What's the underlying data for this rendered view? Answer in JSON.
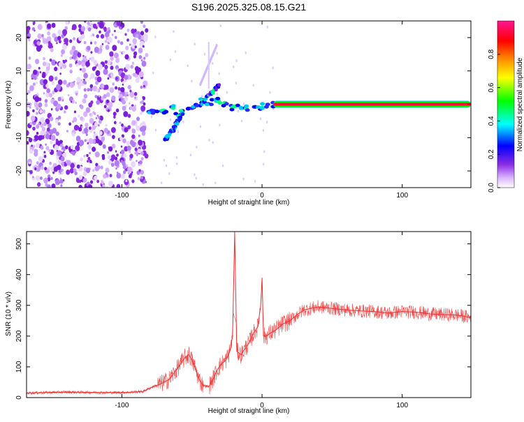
{
  "title": "S196.2025.325.08.15.G21",
  "chart_data": [
    {
      "type": "heatmap",
      "name": "spectrogram",
      "xlabel": "Height of straight line (km)",
      "ylabel": "Frequency (Hz)",
      "xlim": [
        -168,
        149
      ],
      "ylim": [
        -25,
        25
      ],
      "xticks": [
        -100,
        0,
        100
      ],
      "xtick_labels": [
        "-100",
        "0",
        "100"
      ],
      "yticks": [
        -20,
        -10,
        0,
        10,
        20
      ],
      "ytick_labels": [
        "-20",
        "-10",
        "0",
        "10",
        "20"
      ],
      "carrier": {
        "x_from": 8,
        "x_to": 149,
        "freq": 0,
        "amplitude": 1.0
      },
      "colorbar": {
        "label": "Normalized spectral amplitude",
        "range": [
          0,
          1
        ],
        "ticks": [
          0.0,
          0.2,
          0.4,
          0.6,
          0.8
        ],
        "tick_labels": [
          "0.0",
          "0.2",
          "0.4",
          "0.6",
          "0.8"
        ],
        "colors": [
          "#ffffff",
          "#d9b3ff",
          "#8a2be2",
          "#0000ff",
          "#00ffff",
          "#00ff00",
          "#ffff00",
          "#ff8000",
          "#ff0000",
          "#ff1493"
        ]
      }
    },
    {
      "type": "line",
      "name": "snr",
      "xlabel": "Height of straight line (km)",
      "ylabel": "SNR (10 * v/v)",
      "xlim": [
        -168,
        149
      ],
      "ylim": [
        0,
        540
      ],
      "xticks": [
        -100,
        0,
        100
      ],
      "xtick_labels": [
        "-100",
        "0",
        "100"
      ],
      "yticks": [
        0,
        100,
        200,
        300,
        400,
        500
      ],
      "ytick_labels": [
        "0",
        "100",
        "200",
        "300",
        "400",
        "500"
      ],
      "color": "#ee3030",
      "series": [
        {
          "name": "SNR",
          "x": [
            -168,
            -140,
            -110,
            -95,
            -85,
            -78,
            -72,
            -66,
            -62,
            -58,
            -55,
            -52,
            -48,
            -45,
            -42,
            -38,
            -35,
            -32,
            -29,
            -26,
            -23,
            -21,
            -19.5,
            -18,
            -15,
            -12,
            -9,
            -6,
            -3,
            -1,
            0,
            1,
            3,
            6,
            10,
            15,
            20,
            25,
            30,
            40,
            50,
            60,
            70,
            80,
            90,
            100,
            110,
            120,
            130,
            140,
            149
          ],
          "y": [
            15,
            18,
            16,
            17,
            20,
            35,
            45,
            60,
            85,
            110,
            130,
            140,
            100,
            60,
            40,
            35,
            60,
            90,
            110,
            120,
            150,
            200,
            540,
            150,
            140,
            160,
            180,
            210,
            230,
            300,
            390,
            200,
            200,
            210,
            220,
            240,
            250,
            270,
            285,
            295,
            290,
            285,
            282,
            280,
            275,
            280,
            278,
            272,
            270,
            268,
            260
          ]
        }
      ]
    }
  ]
}
